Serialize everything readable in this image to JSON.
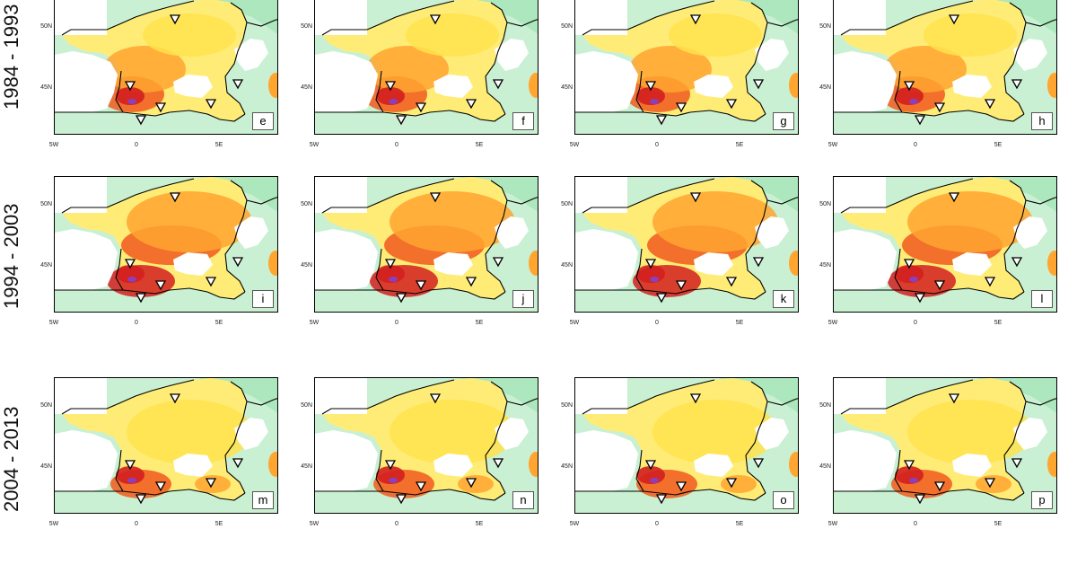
{
  "row_labels": [
    "1984 - 1993",
    "1994 - 2003",
    "2004 - 2013"
  ],
  "lat_ticks": [
    "50N",
    "45N"
  ],
  "lon_ticks": [
    "5W",
    "0",
    "5E"
  ],
  "panels": [
    {
      "letter": "e",
      "row": 0,
      "col": 0
    },
    {
      "letter": "f",
      "row": 0,
      "col": 1
    },
    {
      "letter": "g",
      "row": 0,
      "col": 2
    },
    {
      "letter": "h",
      "row": 0,
      "col": 3
    },
    {
      "letter": "i",
      "row": 1,
      "col": 0
    },
    {
      "letter": "j",
      "row": 1,
      "col": 1
    },
    {
      "letter": "k",
      "row": 1,
      "col": 2
    },
    {
      "letter": "l",
      "row": 1,
      "col": 3
    },
    {
      "letter": "m",
      "row": 2,
      "col": 0
    },
    {
      "letter": "n",
      "row": 2,
      "col": 1
    },
    {
      "letter": "o",
      "row": 2,
      "col": 2
    },
    {
      "letter": "p",
      "row": 2,
      "col": 3
    }
  ],
  "colors": {
    "light_green": "#c9f0d2",
    "mint": "#9fe3b3",
    "pale_yellow": "#fff6a8",
    "yellow": "#ffe34d",
    "orange": "#ffa530",
    "red_orange": "#f05a1e",
    "red": "#d21f1f",
    "purple": "#8a3fc0",
    "coast": "#000000"
  }
}
